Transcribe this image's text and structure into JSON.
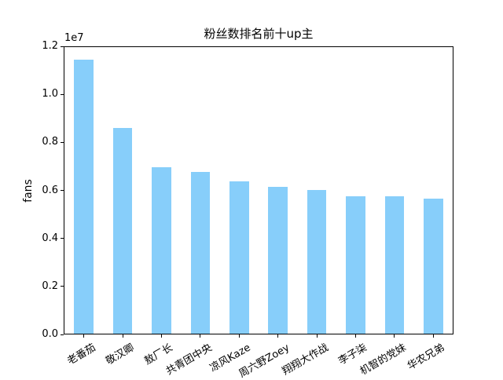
{
  "chart_data": {
    "type": "bar",
    "title": "粉丝数排名前十up主",
    "ylabel": "fans",
    "xlabel": "",
    "y_axis_multiplier_label": "1e7",
    "categories": [
      "老番茄",
      "敬汉卿",
      "敖厂长",
      "共青团中央",
      "凉风Kaze",
      "周六野Zoey",
      "翔翔大作战",
      "李子柒",
      "机智的党妹",
      "华农兄弟"
    ],
    "values": [
      11490000,
      8620000,
      6980000,
      6760000,
      6380000,
      6140000,
      6020000,
      5760000,
      5740000,
      5670000
    ],
    "ylim": [
      0,
      12000000
    ],
    "yticks": {
      "values": [
        0,
        2000000,
        4000000,
        6000000,
        8000000,
        10000000,
        12000000
      ],
      "labels": [
        "0.0",
        "0.2",
        "0.4",
        "0.6",
        "0.8",
        "1.0",
        "1.2"
      ]
    },
    "bar_color": "#87CEFA",
    "bar_width_fraction": 0.5,
    "xtick_rotation_deg": 30,
    "grid": false,
    "legend": "none"
  }
}
